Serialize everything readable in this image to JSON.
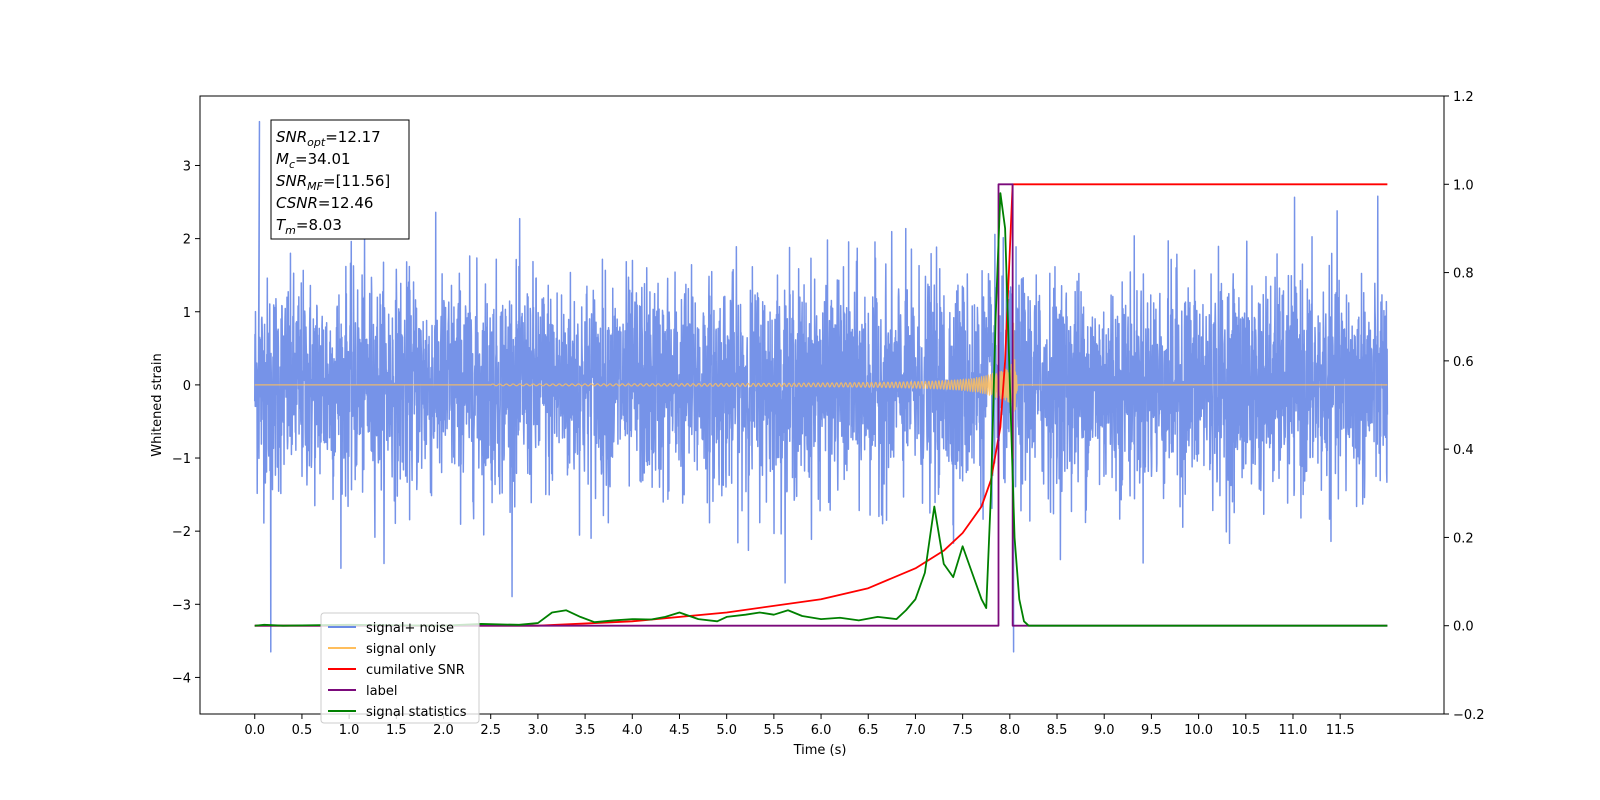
{
  "chart_data": {
    "type": "line",
    "title": "",
    "xlabel": "Time (s)",
    "ylabel": "Whitened strain",
    "y2label": "",
    "xlim": [
      -0.58,
      12.6
    ],
    "ylim": [
      -4.5,
      3.95
    ],
    "y2lim": [
      -0.2,
      1.2
    ],
    "x_ticks": [
      0.0,
      0.5,
      1.0,
      1.5,
      2.0,
      2.5,
      3.0,
      3.5,
      4.0,
      4.5,
      5.0,
      5.5,
      6.0,
      6.5,
      7.0,
      7.5,
      8.0,
      8.5,
      9.0,
      9.5,
      10.0,
      10.5,
      11.0,
      11.5
    ],
    "y_ticks": [
      -4,
      -3,
      -2,
      -1,
      0,
      1,
      2,
      3
    ],
    "y2_ticks": [
      -0.2,
      0.0,
      0.2,
      0.4,
      0.6,
      0.8,
      1.0,
      1.2
    ],
    "grid": false,
    "legend_position": "lower-left",
    "annotation": {
      "lines": [
        {
          "base": "SNR",
          "sub": "opt",
          "value": "=12.17"
        },
        {
          "base": "M",
          "sub": "c",
          "value": "=34.01"
        },
        {
          "base": "SNR",
          "sub": "MF",
          "value": "=[11.56]"
        },
        {
          "base": "CSNR",
          "sub": "",
          "value": "=12.46"
        },
        {
          "base": "T",
          "sub": "m",
          "value": "=8.03"
        }
      ]
    },
    "series": [
      {
        "name": "signal+ noise",
        "color": "#6a8ae6",
        "axis": "left",
        "kind": "noise",
        "x_range": [
          0.0,
          12.0
        ],
        "amplitude": 1.0,
        "peaks_max": 3.6,
        "peaks_min": -3.65
      },
      {
        "name": "signal only",
        "color": "#ffbe5c",
        "axis": "left",
        "kind": "chirp",
        "t_merger": 8.03,
        "peak": 1.6
      },
      {
        "name": "cumilative SNR",
        "color": "#ff0000",
        "axis": "right",
        "x": [
          0.0,
          3.0,
          4.0,
          5.0,
          6.0,
          6.5,
          7.0,
          7.3,
          7.5,
          7.7,
          7.8,
          7.9,
          7.95,
          8.0,
          8.03,
          8.06,
          12.0
        ],
        "y": [
          0.0,
          0.0,
          0.01,
          0.03,
          0.06,
          0.085,
          0.13,
          0.17,
          0.21,
          0.27,
          0.33,
          0.45,
          0.6,
          0.85,
          1.0,
          1.0,
          1.0
        ]
      },
      {
        "name": "label",
        "color": "#7b0a7b",
        "axis": "right",
        "x": [
          0.0,
          7.88,
          7.88,
          8.03,
          8.03,
          12.0
        ],
        "y": [
          0.0,
          0.0,
          1.0,
          1.0,
          0.0,
          0.0
        ]
      },
      {
        "name": "signal statistics",
        "color": "#008000",
        "axis": "right",
        "x": [
          0.0,
          0.1,
          0.3,
          0.6,
          1.0,
          1.5,
          2.0,
          2.4,
          2.8,
          3.0,
          3.15,
          3.3,
          3.45,
          3.6,
          3.8,
          4.0,
          4.2,
          4.35,
          4.5,
          4.7,
          4.9,
          5.0,
          5.2,
          5.35,
          5.5,
          5.65,
          5.8,
          6.0,
          6.2,
          6.4,
          6.6,
          6.8,
          6.9,
          7.0,
          7.1,
          7.2,
          7.3,
          7.4,
          7.5,
          7.6,
          7.7,
          7.75,
          7.8,
          7.85,
          7.9,
          7.95,
          8.0,
          8.05,
          8.1,
          8.15,
          8.2,
          8.3,
          12.0
        ],
        "y": [
          0.0,
          0.002,
          0.0,
          0.001,
          0.002,
          0.001,
          0.0,
          0.004,
          0.002,
          0.006,
          0.03,
          0.035,
          0.02,
          0.008,
          0.012,
          0.015,
          0.014,
          0.02,
          0.03,
          0.015,
          0.01,
          0.02,
          0.025,
          0.03,
          0.025,
          0.035,
          0.022,
          0.015,
          0.018,
          0.012,
          0.02,
          0.015,
          0.035,
          0.06,
          0.12,
          0.27,
          0.14,
          0.11,
          0.18,
          0.12,
          0.06,
          0.04,
          0.3,
          0.7,
          0.98,
          0.9,
          0.55,
          0.2,
          0.06,
          0.01,
          0.0,
          0.0,
          0.0
        ]
      }
    ]
  }
}
